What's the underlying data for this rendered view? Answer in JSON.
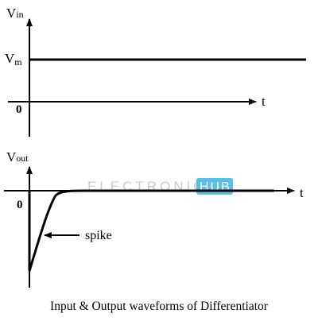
{
  "input_graph": {
    "y_label_main": "V",
    "y_label_sub": "in",
    "level_label_main": "V",
    "level_label_sub": "m",
    "origin_label": "0",
    "x_label": "t"
  },
  "output_graph": {
    "y_label_main": "V",
    "y_label_sub": "out",
    "origin_label": "0",
    "x_label": "t",
    "annotation": "spike"
  },
  "watermark": {
    "part1": "ELECTRONICS",
    "part2": "HUB",
    "color1": "#c8ccd2",
    "color2": "#5bc0e8"
  },
  "caption": "Input & Output waveforms of Differentiator"
}
